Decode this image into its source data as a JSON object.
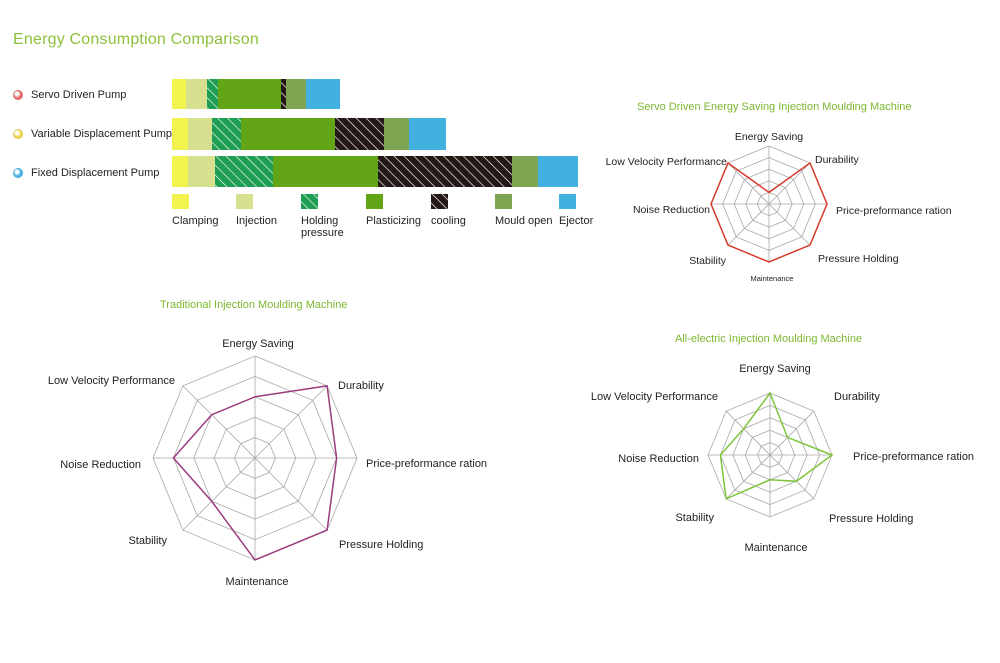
{
  "title": "Energy Consumption Comparison",
  "colors": {
    "clamping": "#f3f350",
    "injection": "#d6e08e",
    "holding": "#1e9e53",
    "plasticizing": "#62a516",
    "cooling": "#231815",
    "mould_open": "#7fa452",
    "ejector": "#42b1df",
    "servo_dot": "#e86f6f",
    "variable_dot": "#f1d54a",
    "fixed_dot": "#49b5e5",
    "title": "#8dc03a"
  },
  "pumps": [
    {
      "name": "Servo Driven Pump",
      "dot": "servo"
    },
    {
      "name": "Variable Displacement Pump",
      "dot": "variable"
    },
    {
      "name": "Fixed Displacement Pump",
      "dot": "fixed"
    }
  ],
  "chart_data": [
    {
      "type": "bar",
      "orientation": "horizontal-stacked",
      "categories": [
        "Servo Driven Pump",
        "Variable Displacement Pump",
        "Fixed Displacement Pump"
      ],
      "series": [
        {
          "name": "Clamping",
          "values": [
            14,
            16,
            16
          ]
        },
        {
          "name": "Injection",
          "values": [
            21,
            24,
            27
          ]
        },
        {
          "name": "Holding pressure",
          "values": [
            11,
            29,
            58
          ]
        },
        {
          "name": "Plasticizing",
          "values": [
            63,
            94,
            105
          ]
        },
        {
          "name": "cooling",
          "values": [
            5,
            49,
            134
          ]
        },
        {
          "name": "Mould open",
          "values": [
            20,
            25,
            26
          ]
        },
        {
          "name": "Ejector",
          "values": [
            34,
            37,
            40
          ]
        }
      ],
      "legend": [
        {
          "key": "clamping",
          "label": "Clamping",
          "pattern": "solid"
        },
        {
          "key": "injection",
          "label": "Injection",
          "pattern": "solid"
        },
        {
          "key": "holding",
          "label": "Holding pressure",
          "pattern": "hatch"
        },
        {
          "key": "plasticizing",
          "label": "Plasticizing",
          "pattern": "solid"
        },
        {
          "key": "cooling",
          "label": "cooling",
          "pattern": "hatch"
        },
        {
          "key": "mould_open",
          "label": "Mould open",
          "pattern": "solid"
        },
        {
          "key": "ejector",
          "label": "Ejector",
          "pattern": "solid"
        }
      ],
      "legend_placement": "bottom"
    },
    {
      "type": "radar",
      "title": "Servo Driven Energy Saving Injection Moulding Machine",
      "axes": [
        "Energy Saving",
        "Durability",
        "Price-preformance ration",
        "Pressure Holding",
        "Maintenance",
        "Stability",
        "Noise Reduction",
        "Low Velocity Performance"
      ],
      "values": [
        1,
        5,
        5,
        5,
        5,
        5,
        5,
        5
      ],
      "max": 5,
      "color": "#d83a2b"
    },
    {
      "type": "radar",
      "title": "Traditional Injection Moulding Machine",
      "axes": [
        "Energy Saving",
        "Durability",
        "Price-preformance ration",
        "Pressure Holding",
        "Maintenance",
        "Stability",
        "Noise Reduction",
        "Low Velocity Performance"
      ],
      "values": [
        3,
        5,
        4,
        5,
        5,
        3,
        4,
        3
      ],
      "max": 5,
      "color": "#9c3b7e"
    },
    {
      "type": "radar",
      "title": "All-electric Injection Moulding Machine",
      "axes": [
        "Energy Saving",
        "Durability",
        "Price-preformance ration",
        "Pressure Holding",
        "Maintenance",
        "Stability",
        "Noise Reduction",
        "Low Velocity Performance"
      ],
      "values": [
        5,
        2,
        5,
        3,
        2,
        5,
        4,
        3
      ],
      "max": 5,
      "color": "#7cc43a"
    }
  ]
}
